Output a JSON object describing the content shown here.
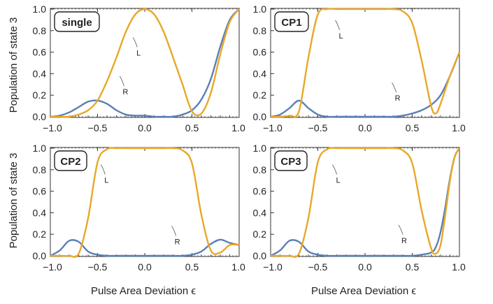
{
  "figure": {
    "ylabel": "Population of state 3",
    "xlabel": "Pulse Area Deviation ϵ"
  },
  "chart_data": [
    {
      "type": "line",
      "panel_label": "single",
      "xlim": [
        -1.0,
        1.0
      ],
      "ylim": [
        0.0,
        1.0
      ],
      "xticks": [
        "−1.0",
        "−0.5",
        "0.0",
        "0.5",
        "1.0"
      ],
      "yticks": [
        "0.0",
        "0.2",
        "0.4",
        "0.6",
        "0.8",
        "1.0"
      ],
      "reference_lines": [
        0.0,
        1.0
      ],
      "series": [
        {
          "name": "L",
          "color": "#E8A828",
          "x": [
            -1.0,
            -0.9,
            -0.8,
            -0.7,
            -0.6,
            -0.5,
            -0.4,
            -0.3,
            -0.2,
            -0.1,
            0.0,
            0.1,
            0.2,
            0.3,
            0.4,
            0.5,
            0.6,
            0.7,
            0.8,
            0.9,
            1.0
          ],
          "y": [
            0.0,
            0.0,
            0.0,
            0.02,
            0.06,
            0.15,
            0.33,
            0.55,
            0.79,
            0.95,
            1.0,
            0.95,
            0.79,
            0.55,
            0.3,
            0.05,
            0.03,
            0.22,
            0.58,
            0.88,
            1.0
          ]
        },
        {
          "name": "R",
          "color": "#5B7FB5",
          "x": [
            -1.0,
            -0.9,
            -0.8,
            -0.7,
            -0.6,
            -0.5,
            -0.4,
            -0.3,
            -0.2,
            -0.1,
            0.0,
            0.1,
            0.2,
            0.3,
            0.4,
            0.5,
            0.6,
            0.7,
            0.8,
            0.9,
            1.0
          ],
          "y": [
            0.0,
            0.01,
            0.04,
            0.09,
            0.14,
            0.15,
            0.12,
            0.06,
            0.02,
            0.01,
            0.01,
            0.0,
            0.0,
            0.0,
            0.02,
            0.06,
            0.16,
            0.35,
            0.65,
            0.9,
            1.0
          ]
        }
      ],
      "annotations": [
        {
          "text": "L",
          "x": -0.08,
          "y": 0.62
        },
        {
          "text": "R",
          "x": -0.22,
          "y": 0.26
        }
      ]
    },
    {
      "type": "line",
      "panel_label": "CP1",
      "xlim": [
        -1.0,
        1.0
      ],
      "ylim": [
        0.0,
        1.0
      ],
      "xticks": [
        "−1.0",
        "−0.5",
        "0.0",
        "0.5",
        "1.0"
      ],
      "yticks": [
        "0.0",
        "0.2",
        "0.4",
        "0.6",
        "0.8",
        "1.0"
      ],
      "reference_lines": [
        0.0,
        1.0
      ],
      "series": [
        {
          "name": "L",
          "color": "#E8A828",
          "x": [
            -1.0,
            -0.9,
            -0.8,
            -0.7,
            -0.6,
            -0.5,
            -0.4,
            -0.3,
            -0.2,
            -0.1,
            0.0,
            0.1,
            0.2,
            0.3,
            0.4,
            0.5,
            0.6,
            0.7,
            0.75,
            0.8,
            0.9,
            1.0
          ],
          "y": [
            0.0,
            0.0,
            0.01,
            0.05,
            0.55,
            0.95,
            1.0,
            1.0,
            1.0,
            1.0,
            1.0,
            1.0,
            1.0,
            1.0,
            0.98,
            0.87,
            0.52,
            0.1,
            0.03,
            0.12,
            0.38,
            0.6
          ]
        },
        {
          "name": "R",
          "color": "#5B7FB5",
          "x": [
            -1.0,
            -0.9,
            -0.8,
            -0.7,
            -0.6,
            -0.5,
            -0.4,
            -0.3,
            -0.2,
            -0.1,
            0.0,
            0.1,
            0.2,
            0.3,
            0.4,
            0.5,
            0.6,
            0.7,
            0.8,
            0.9,
            1.0
          ],
          "y": [
            0.0,
            0.02,
            0.08,
            0.15,
            0.08,
            0.02,
            0.0,
            0.0,
            0.0,
            0.0,
            0.0,
            0.0,
            0.0,
            0.0,
            0.01,
            0.03,
            0.06,
            0.11,
            0.2,
            0.38,
            0.6
          ]
        }
      ],
      "annotations": [
        {
          "text": "L",
          "x": -0.27,
          "y": 0.78
        },
        {
          "text": "R",
          "x": 0.33,
          "y": 0.2
        }
      ]
    },
    {
      "type": "line",
      "panel_label": "CP2",
      "xlim": [
        -1.0,
        1.0
      ],
      "ylim": [
        0.0,
        1.0
      ],
      "xticks": [
        "−1.0",
        "−0.5",
        "0.0",
        "0.5",
        "1.0"
      ],
      "yticks": [
        "0.0",
        "0.2",
        "0.4",
        "0.6",
        "0.8",
        "1.0"
      ],
      "reference_lines": [
        0.0,
        1.0
      ],
      "series": [
        {
          "name": "L",
          "color": "#E8A828",
          "x": [
            -1.0,
            -0.9,
            -0.8,
            -0.7,
            -0.6,
            -0.5,
            -0.4,
            -0.3,
            -0.2,
            -0.1,
            0.0,
            0.1,
            0.2,
            0.3,
            0.4,
            0.5,
            0.6,
            0.7,
            0.8,
            0.9,
            1.0
          ],
          "y": [
            0.0,
            0.0,
            0.0,
            0.02,
            0.35,
            0.87,
            0.99,
            1.0,
            1.0,
            1.0,
            1.0,
            1.0,
            1.0,
            1.0,
            0.98,
            0.86,
            0.38,
            0.05,
            0.03,
            0.1,
            0.1
          ]
        },
        {
          "name": "R",
          "color": "#5B7FB5",
          "x": [
            -1.0,
            -0.9,
            -0.8,
            -0.7,
            -0.6,
            -0.5,
            -0.4,
            -0.3,
            -0.2,
            -0.1,
            0.0,
            0.1,
            0.2,
            0.3,
            0.4,
            0.5,
            0.6,
            0.7,
            0.8,
            0.9,
            1.0
          ],
          "y": [
            0.0,
            0.05,
            0.14,
            0.13,
            0.04,
            0.01,
            0.0,
            0.0,
            0.0,
            0.0,
            0.0,
            0.0,
            0.0,
            0.0,
            0.0,
            0.01,
            0.04,
            0.11,
            0.15,
            0.12,
            0.1
          ]
        }
      ],
      "annotations": [
        {
          "text": "L",
          "x": -0.42,
          "y": 0.73
        },
        {
          "text": "R",
          "x": 0.33,
          "y": 0.16
        }
      ]
    },
    {
      "type": "line",
      "panel_label": "CP3",
      "xlim": [
        -1.0,
        1.0
      ],
      "ylim": [
        0.0,
        1.0
      ],
      "xticks": [
        "−1.0",
        "−0.5",
        "0.0",
        "0.5",
        "1.0"
      ],
      "yticks": [
        "0.0",
        "0.2",
        "0.4",
        "0.6",
        "0.8",
        "1.0"
      ],
      "reference_lines": [
        0.0,
        1.0
      ],
      "series": [
        {
          "name": "L",
          "color": "#E8A828",
          "x": [
            -1.0,
            -0.9,
            -0.8,
            -0.7,
            -0.6,
            -0.5,
            -0.4,
            -0.3,
            -0.2,
            -0.1,
            0.0,
            0.1,
            0.2,
            0.3,
            0.4,
            0.5,
            0.6,
            0.7,
            0.75,
            0.8,
            0.85,
            0.9,
            0.95,
            1.0
          ],
          "y": [
            0.0,
            0.0,
            0.0,
            0.02,
            0.35,
            0.87,
            0.99,
            1.0,
            1.0,
            1.0,
            1.0,
            1.0,
            1.0,
            1.0,
            0.98,
            0.86,
            0.42,
            0.07,
            0.02,
            0.1,
            0.38,
            0.7,
            0.92,
            1.0
          ]
        },
        {
          "name": "R",
          "color": "#5B7FB5",
          "x": [
            -1.0,
            -0.9,
            -0.8,
            -0.7,
            -0.6,
            -0.5,
            -0.4,
            -0.3,
            -0.2,
            -0.1,
            0.0,
            0.1,
            0.2,
            0.3,
            0.4,
            0.5,
            0.6,
            0.7,
            0.75,
            0.8,
            0.85,
            0.9,
            0.95,
            1.0
          ],
          "y": [
            0.0,
            0.05,
            0.14,
            0.13,
            0.04,
            0.01,
            0.0,
            0.0,
            0.0,
            0.0,
            0.0,
            0.0,
            0.0,
            0.0,
            0.0,
            0.0,
            0.01,
            0.03,
            0.08,
            0.22,
            0.45,
            0.72,
            0.92,
            1.0
          ]
        }
      ],
      "annotations": [
        {
          "text": "L",
          "x": -0.3,
          "y": 0.73
        },
        {
          "text": "R",
          "x": 0.4,
          "y": 0.17
        }
      ]
    }
  ]
}
